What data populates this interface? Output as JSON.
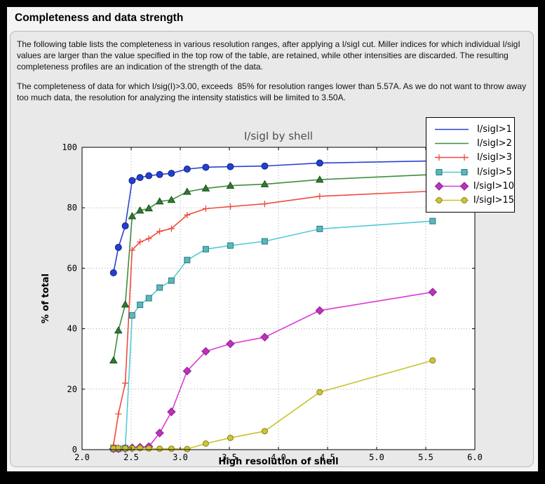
{
  "header": {
    "title": "Completeness and data strength"
  },
  "body": {
    "paragraph1": "The following table lists the completeness in various resolution ranges, after applying a I/sigI cut. Miller indices for which individual I/sigI values are larger than the value specified in the top row of the table, are retained, while other intensities are discarded. The resulting completeness profiles are an indication of the strength of the data.",
    "paragraph2": "The completeness of data for which I/sig(I)>3.00, exceeds  85% for resolution ranges lower than 5.57A. As we do not want to throw away too much data, the resolution for analyzing the intensity statistics will be limited to 3.50A."
  },
  "chart_data": {
    "type": "line",
    "title": "I/sigI by shell",
    "xlabel": "High resolution of shell",
    "ylabel": "% of total",
    "xlim": [
      2.0,
      6.0
    ],
    "ylim": [
      0,
      100
    ],
    "xticks": [
      "2.0",
      "2.5",
      "3.0",
      "3.5",
      "4.0",
      "4.5",
      "5.0",
      "5.5",
      "6.0"
    ],
    "yticks": [
      "0",
      "20",
      "40",
      "60",
      "80",
      "100"
    ],
    "grid": true,
    "grid_color": "#a8a8a8",
    "legend_position": "upper right",
    "x": [
      2.32,
      2.37,
      2.44,
      2.51,
      2.59,
      2.68,
      2.79,
      2.91,
      3.07,
      3.26,
      3.51,
      3.86,
      4.42,
      5.57
    ],
    "series": [
      {
        "name": "I/sigI>1",
        "line_color": "#2b41d4",
        "marker": "circle",
        "marker_fill": "#2340cf",
        "marker_edge": "#15247d",
        "marker_size": 4.5,
        "legend_markers": false,
        "values": [
          58.5,
          66.9,
          74.0,
          89.0,
          90.0,
          90.6,
          91.0,
          91.4,
          92.8,
          93.4,
          93.6,
          93.8,
          94.8,
          95.5
        ]
      },
      {
        "name": "I/sigI>2",
        "line_color": "#3d8e3d",
        "marker": "triangle",
        "marker_fill": "#2f7a2f",
        "marker_edge": "#1c4f1c",
        "marker_size": 5,
        "legend_markers": false,
        "values": [
          29.5,
          39.4,
          48.0,
          77.2,
          79.1,
          79.8,
          82.1,
          82.6,
          85.3,
          86.4,
          87.3,
          87.8,
          89.3,
          91.0
        ]
      },
      {
        "name": "I/sigI>3",
        "line_color": "#ee4b3e",
        "marker": "plus",
        "marker_fill": "#ee4b3e",
        "marker_edge": "#ee4b3e",
        "marker_size": 4.5,
        "legend_markers": true,
        "values": [
          1.5,
          11.8,
          22.0,
          66.0,
          68.7,
          69.8,
          72.2,
          73.1,
          77.6,
          79.7,
          80.4,
          81.3,
          83.8,
          85.5
        ]
      },
      {
        "name": "I/sigI>5",
        "line_color": "#53cbd4",
        "marker": "square",
        "marker_fill": "#5cb6bc",
        "marker_edge": "#267c82",
        "marker_size": 4,
        "legend_markers": true,
        "values": [
          0.3,
          0.3,
          0.5,
          44.4,
          47.9,
          50.1,
          53.6,
          55.9,
          62.7,
          66.3,
          67.5,
          68.9,
          73.0,
          75.6
        ]
      },
      {
        "name": "I/sigI>10",
        "line_color": "#db3ad6",
        "marker": "diamond",
        "marker_fill": "#bf30bf",
        "marker_edge": "#8a1f8a",
        "marker_size": 5.5,
        "legend_markers": true,
        "values": [
          0.3,
          0.3,
          0.4,
          0.6,
          0.8,
          1.0,
          5.5,
          12.5,
          26.0,
          32.5,
          35.0,
          37.2,
          46.0,
          52.1
        ]
      },
      {
        "name": "I/sigI>15",
        "line_color": "#c9c328",
        "marker": "circle",
        "marker_fill": "#cfc433",
        "marker_edge": "#83801f",
        "marker_size": 4,
        "legend_markers": true,
        "values": [
          0.4,
          0.5,
          0.4,
          0.4,
          0.5,
          0.4,
          0.3,
          0.3,
          0.2,
          2.0,
          3.9,
          6.1,
          19.0,
          29.5
        ]
      }
    ]
  }
}
